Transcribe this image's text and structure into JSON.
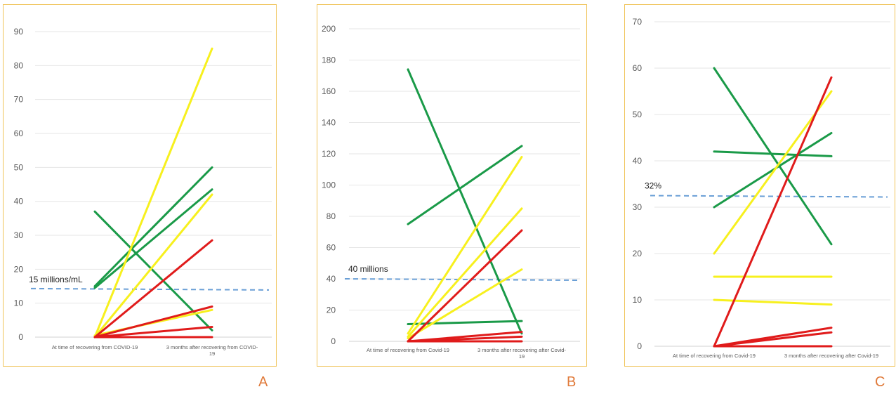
{
  "colors": {
    "green": "#1a9a48",
    "yellow": "#f7f01e",
    "red": "#e01b1b",
    "threshold": "#6a9fd6",
    "grid": "#e6e6e6",
    "border": "#f0c45a",
    "letter": "#e07a3a"
  },
  "chart_data": [
    {
      "type": "line",
      "panel_letter": "A",
      "categories": [
        "At time of recovering from COVID-19",
        "3 months after recovering from COVID-19"
      ],
      "category_lines": [
        [
          "At time of recovering from COVID-19"
        ],
        [
          "3 months after recovering from COVID-",
          "19"
        ]
      ],
      "ylim": [
        0,
        90
      ],
      "yticks": [
        0,
        10,
        20,
        30,
        40,
        50,
        60,
        70,
        80,
        90
      ],
      "grid": true,
      "threshold": {
        "value": 14.3,
        "label": "15 millions/mL"
      },
      "series": [
        {
          "color": "green",
          "values": [
            37,
            2
          ]
        },
        {
          "color": "green",
          "values": [
            15,
            50
          ]
        },
        {
          "color": "green",
          "values": [
            14.5,
            43.5
          ]
        },
        {
          "color": "yellow",
          "values": [
            0,
            85
          ]
        },
        {
          "color": "yellow",
          "values": [
            0,
            42
          ]
        },
        {
          "color": "yellow",
          "values": [
            0.5,
            8
          ]
        },
        {
          "color": "red",
          "values": [
            0,
            28.5
          ]
        },
        {
          "color": "red",
          "values": [
            0,
            9
          ]
        },
        {
          "color": "red",
          "values": [
            0,
            3
          ]
        },
        {
          "color": "red",
          "values": [
            0,
            0
          ]
        }
      ]
    },
    {
      "type": "line",
      "panel_letter": "B",
      "categories": [
        "At time of recovering from Covid-19",
        "3 months after recovering after Covid-19"
      ],
      "category_lines": [
        [
          "At time of recovering from Covid-19"
        ],
        [
          "3 months after recovering after Covid-",
          "19"
        ]
      ],
      "ylim": [
        0,
        200
      ],
      "yticks": [
        0,
        20,
        40,
        60,
        80,
        100,
        120,
        140,
        160,
        180,
        200
      ],
      "grid": true,
      "threshold": {
        "value": 40,
        "label": "40 millions"
      },
      "series": [
        {
          "color": "green",
          "values": [
            174,
            5
          ]
        },
        {
          "color": "green",
          "values": [
            75,
            125
          ]
        },
        {
          "color": "green",
          "values": [
            11,
            13
          ]
        },
        {
          "color": "yellow",
          "values": [
            5,
            118
          ]
        },
        {
          "color": "yellow",
          "values": [
            3,
            85
          ]
        },
        {
          "color": "yellow",
          "values": [
            2,
            46
          ]
        },
        {
          "color": "red",
          "values": [
            0,
            71
          ]
        },
        {
          "color": "red",
          "values": [
            0,
            6
          ]
        },
        {
          "color": "red",
          "values": [
            0,
            3
          ]
        },
        {
          "color": "red",
          "values": [
            0,
            0
          ]
        }
      ]
    },
    {
      "type": "line",
      "panel_letter": "C",
      "categories": [
        "At time of recovering from Covid-19",
        "3 months after recovering after Covid-19"
      ],
      "category_lines": [
        [
          "At time of recovering from Covid-19"
        ],
        [
          "3 months after recovering after Covid-19"
        ]
      ],
      "ylim": [
        0,
        70
      ],
      "yticks": [
        0,
        10,
        20,
        30,
        40,
        50,
        60,
        70
      ],
      "grid": true,
      "threshold": {
        "value": 32.5,
        "label": "32%"
      },
      "series": [
        {
          "color": "green",
          "values": [
            60,
            22
          ]
        },
        {
          "color": "green",
          "values": [
            42,
            41
          ]
        },
        {
          "color": "green",
          "values": [
            30,
            46
          ]
        },
        {
          "color": "yellow",
          "values": [
            20,
            55
          ]
        },
        {
          "color": "yellow",
          "values": [
            15,
            15
          ]
        },
        {
          "color": "yellow",
          "values": [
            10,
            9
          ]
        },
        {
          "color": "red",
          "values": [
            0,
            58
          ]
        },
        {
          "color": "red",
          "values": [
            0,
            4
          ]
        },
        {
          "color": "red",
          "values": [
            0,
            3
          ]
        },
        {
          "color": "red",
          "values": [
            0,
            0
          ]
        }
      ]
    }
  ]
}
